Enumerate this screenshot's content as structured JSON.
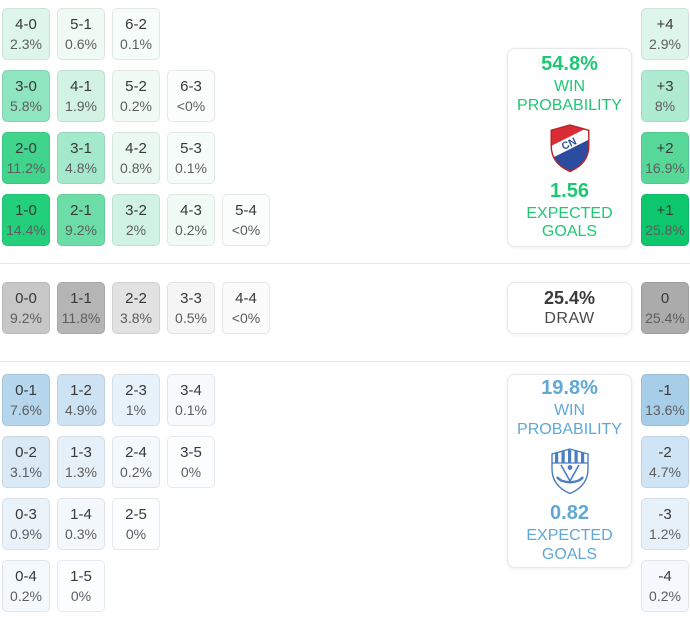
{
  "theme": {
    "home_color": "#1ec873",
    "away_color": "#5fa8d8",
    "draw_text_color": "#3b3b3b",
    "cell_score_color": "#383838",
    "cell_pct_color": "#5d5d5d",
    "divider_color": "#e7e7e7"
  },
  "home": {
    "panel": {
      "win_probability": "54.8%",
      "win_label_line1": "WIN",
      "win_label_line2": "PROBABILITY",
      "expected_goals": "1.56",
      "goals_label_line1": "EXPECTED",
      "goals_label_line2": "GOALS",
      "logo_icon": "home-team-crest-red-white-blue-CN"
    },
    "score_rows": [
      [
        {
          "score": "4-0",
          "pct": "2.3%",
          "bg": "#ddf5ea"
        },
        {
          "score": "5-1",
          "pct": "0.6%",
          "bg": "#effaf4"
        },
        {
          "score": "6-2",
          "pct": "0.1%",
          "bg": "#f6fcf9"
        }
      ],
      [
        {
          "score": "3-0",
          "pct": "5.8%",
          "bg": "#8fe5bf"
        },
        {
          "score": "4-1",
          "pct": "1.9%",
          "bg": "#d2f2e3"
        },
        {
          "score": "5-2",
          "pct": "0.2%",
          "bg": "#f1fbf6"
        },
        {
          "score": "6-3",
          "pct": "<0%",
          "bg": "#fafdfc"
        }
      ],
      [
        {
          "score": "2-0",
          "pct": "11.2%",
          "bg": "#41d48d"
        },
        {
          "score": "3-1",
          "pct": "4.8%",
          "bg": "#a5e9cc"
        },
        {
          "score": "4-2",
          "pct": "0.8%",
          "bg": "#e9f9f1"
        },
        {
          "score": "5-3",
          "pct": "0.1%",
          "bg": "#f6fcf9"
        }
      ],
      [
        {
          "score": "1-0",
          "pct": "14.4%",
          "bg": "#24cf7c"
        },
        {
          "score": "2-1",
          "pct": "9.2%",
          "bg": "#6cdda6"
        },
        {
          "score": "3-2",
          "pct": "2%",
          "bg": "#d0f2e2"
        },
        {
          "score": "4-3",
          "pct": "0.2%",
          "bg": "#f1fbf6"
        },
        {
          "score": "5-4",
          "pct": "<0%",
          "bg": "#fafdfc"
        }
      ]
    ],
    "goal_margins": [
      {
        "label": "+4",
        "pct": "2.9%",
        "bg": "#ddf5ea"
      },
      {
        "label": "+3",
        "pct": "8%",
        "bg": "#aeebd1"
      },
      {
        "label": "+2",
        "pct": "16.9%",
        "bg": "#57d899"
      },
      {
        "label": "+1",
        "pct": "25.8%",
        "bg": "#0dc76c"
      }
    ]
  },
  "draw": {
    "panel": {
      "probability": "25.4%",
      "label": "DRAW"
    },
    "score_rows": [
      [
        {
          "score": "0-0",
          "pct": "9.2%",
          "bg": "#c7c7c7"
        },
        {
          "score": "1-1",
          "pct": "11.8%",
          "bg": "#b5b5b5"
        },
        {
          "score": "2-2",
          "pct": "3.8%",
          "bg": "#e2e2e2"
        },
        {
          "score": "3-3",
          "pct": "0.5%",
          "bg": "#f5f5f5"
        },
        {
          "score": "4-4",
          "pct": "<0%",
          "bg": "#fbfbfb"
        }
      ]
    ],
    "goal_margins": [
      {
        "label": "0",
        "pct": "25.4%",
        "bg": "#ababab"
      }
    ]
  },
  "away": {
    "panel": {
      "win_probability": "19.8%",
      "win_label_line1": "WIN",
      "win_label_line2": "PROBABILITY",
      "expected_goals": "0.82",
      "goals_label_line1": "EXPECTED",
      "goals_label_line2": "GOALS",
      "logo_icon": "away-team-crest-white-blue-shield"
    },
    "score_rows": [
      [
        {
          "score": "0-1",
          "pct": "7.6%",
          "bg": "#b5d6ec"
        },
        {
          "score": "1-2",
          "pct": "4.9%",
          "bg": "#cde3f4"
        },
        {
          "score": "2-3",
          "pct": "1%",
          "bg": "#e8f2fa"
        },
        {
          "score": "3-4",
          "pct": "0.1%",
          "bg": "#f7fafd"
        }
      ],
      [
        {
          "score": "0-2",
          "pct": "3.1%",
          "bg": "#d9eaf6"
        },
        {
          "score": "1-3",
          "pct": "1.3%",
          "bg": "#e5f0f9"
        },
        {
          "score": "2-4",
          "pct": "0.2%",
          "bg": "#f4f9fd"
        },
        {
          "score": "3-5",
          "pct": "0%",
          "bg": "#fbfdfe"
        }
      ],
      [
        {
          "score": "0-3",
          "pct": "0.9%",
          "bg": "#eaf3fa"
        },
        {
          "score": "1-4",
          "pct": "0.3%",
          "bg": "#f3f8fc"
        },
        {
          "score": "2-5",
          "pct": "0%",
          "bg": "#fbfdfe"
        }
      ],
      [
        {
          "score": "0-4",
          "pct": "0.2%",
          "bg": "#f4f9fd"
        },
        {
          "score": "1-5",
          "pct": "0%",
          "bg": "#fbfdfe"
        }
      ]
    ],
    "goal_margins": [
      {
        "label": "-1",
        "pct": "13.6%",
        "bg": "#a7cee9"
      },
      {
        "label": "-2",
        "pct": "4.7%",
        "bg": "#cfe4f4"
      },
      {
        "label": "-3",
        "pct": "1.2%",
        "bg": "#e7f1f9"
      },
      {
        "label": "-4",
        "pct": "0.2%",
        "bg": "#f5f9fd"
      }
    ]
  },
  "chart_data": {
    "type": "heatmap",
    "title": "Correct score probability matrix with win probability and expected goals",
    "legend_position": "right",
    "sections": [
      {
        "outcome": "home_win",
        "win_probability_pct": 54.8,
        "expected_goals": 1.56,
        "scores": [
          {
            "score": "4-0",
            "pct": "2.3"
          },
          {
            "score": "5-1",
            "pct": "0.6"
          },
          {
            "score": "6-2",
            "pct": "0.1"
          },
          {
            "score": "3-0",
            "pct": "5.8"
          },
          {
            "score": "4-1",
            "pct": "1.9"
          },
          {
            "score": "5-2",
            "pct": "0.2"
          },
          {
            "score": "6-3",
            "pct": "<0"
          },
          {
            "score": "2-0",
            "pct": "11.2"
          },
          {
            "score": "3-1",
            "pct": "4.8"
          },
          {
            "score": "4-2",
            "pct": "0.8"
          },
          {
            "score": "5-3",
            "pct": "0.1"
          },
          {
            "score": "1-0",
            "pct": "14.4"
          },
          {
            "score": "2-1",
            "pct": "9.2"
          },
          {
            "score": "3-2",
            "pct": "2"
          },
          {
            "score": "4-3",
            "pct": "0.2"
          },
          {
            "score": "5-4",
            "pct": "<0"
          }
        ],
        "goal_margins": [
          {
            "margin": "+4",
            "pct": "2.9"
          },
          {
            "margin": "+3",
            "pct": "8"
          },
          {
            "margin": "+2",
            "pct": "16.9"
          },
          {
            "margin": "+1",
            "pct": "25.8"
          }
        ]
      },
      {
        "outcome": "draw",
        "probability_pct": 25.4,
        "scores": [
          {
            "score": "0-0",
            "pct": "9.2"
          },
          {
            "score": "1-1",
            "pct": "11.8"
          },
          {
            "score": "2-2",
            "pct": "3.8"
          },
          {
            "score": "3-3",
            "pct": "0.5"
          },
          {
            "score": "4-4",
            "pct": "<0"
          }
        ],
        "goal_margins": [
          {
            "margin": "0",
            "pct": "25.4"
          }
        ]
      },
      {
        "outcome": "away_win",
        "win_probability_pct": 19.8,
        "expected_goals": 0.82,
        "scores": [
          {
            "score": "0-1",
            "pct": "7.6"
          },
          {
            "score": "1-2",
            "pct": "4.9"
          },
          {
            "score": "2-3",
            "pct": "1"
          },
          {
            "score": "3-4",
            "pct": "0.1"
          },
          {
            "score": "0-2",
            "pct": "3.1"
          },
          {
            "score": "1-3",
            "pct": "1.3"
          },
          {
            "score": "2-4",
            "pct": "0.2"
          },
          {
            "score": "3-5",
            "pct": "0"
          },
          {
            "score": "0-3",
            "pct": "0.9"
          },
          {
            "score": "1-4",
            "pct": "0.3"
          },
          {
            "score": "2-5",
            "pct": "0"
          },
          {
            "score": "0-4",
            "pct": "0.2"
          },
          {
            "score": "1-5",
            "pct": "0"
          }
        ],
        "goal_margins": [
          {
            "margin": "-1",
            "pct": "13.6"
          },
          {
            "margin": "-2",
            "pct": "4.7"
          },
          {
            "margin": "-3",
            "pct": "1.2"
          },
          {
            "margin": "-4",
            "pct": "0.2"
          }
        ]
      }
    ]
  }
}
